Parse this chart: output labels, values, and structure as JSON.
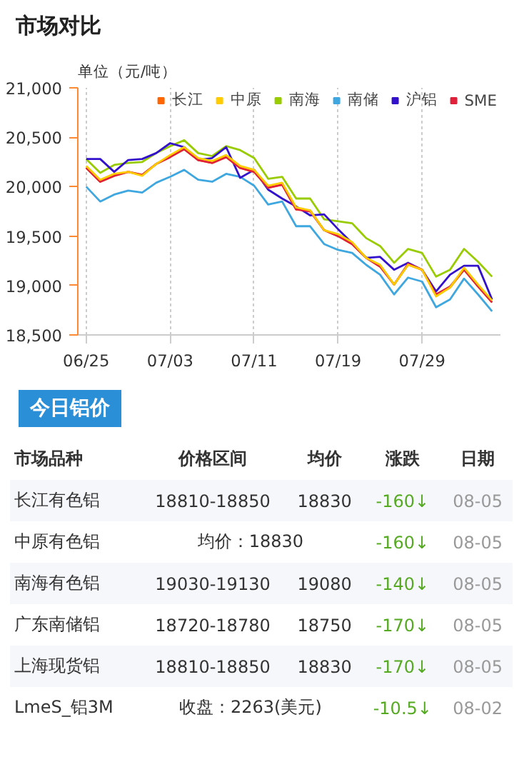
{
  "chart_data": {
    "type": "line",
    "title": "市场对比",
    "ylabel": "单位（元/吨）",
    "categories": [
      "06/25",
      null,
      null,
      null,
      null,
      null,
      "07/03",
      null,
      null,
      null,
      null,
      null,
      "07/11",
      null,
      null,
      null,
      null,
      null,
      "07/19",
      null,
      null,
      null,
      null,
      null,
      "07/29",
      null,
      null,
      null,
      null,
      null
    ],
    "ylim": [
      18500,
      21000
    ],
    "yticks": [
      {
        "value": 18500,
        "label": "18,500"
      },
      {
        "value": 19000,
        "label": "19,000"
      },
      {
        "value": 19500,
        "label": "19,500"
      },
      {
        "value": 20000,
        "label": "20,000"
      },
      {
        "value": 20500,
        "label": "20,500"
      },
      {
        "value": 21000,
        "label": "21,000"
      }
    ],
    "grid": "x",
    "legend": "top",
    "series": [
      {
        "name": "长江",
        "color": "#ff6600",
        "values": [
          20190,
          20050,
          20110,
          20150,
          20120,
          20230,
          20300,
          20380,
          20270,
          20240,
          20300,
          20190,
          20150,
          19990,
          20020,
          19770,
          19760,
          19560,
          19500,
          19420,
          19280,
          19200,
          19010,
          19210,
          19160,
          18900,
          18980,
          19160,
          18990,
          18830
        ]
      },
      {
        "name": "中原",
        "color": "#ffcc00",
        "values": [
          20210,
          20070,
          20130,
          20150,
          20110,
          20230,
          20320,
          20400,
          20290,
          20260,
          20320,
          20210,
          20170,
          20010,
          20040,
          19790,
          19760,
          19560,
          19520,
          19440,
          19280,
          19210,
          19010,
          19210,
          19160,
          18890,
          18980,
          19180,
          19010,
          18850
        ]
      },
      {
        "name": "南海",
        "color": "#99cc00",
        "values": [
          20280,
          20140,
          20220,
          20240,
          20250,
          20340,
          20410,
          20470,
          20340,
          20310,
          20410,
          20370,
          20290,
          20080,
          20100,
          19880,
          19880,
          19670,
          19650,
          19630,
          19480,
          19400,
          19230,
          19370,
          19330,
          19090,
          19160,
          19370,
          19240,
          19090
        ]
      },
      {
        "name": "南储",
        "color": "#3fa7e0",
        "values": [
          20000,
          19850,
          19920,
          19960,
          19940,
          20040,
          20100,
          20170,
          20070,
          20050,
          20130,
          20100,
          20010,
          19820,
          19850,
          19600,
          19600,
          19420,
          19360,
          19330,
          19210,
          19110,
          18910,
          19080,
          19040,
          18780,
          18860,
          19070,
          18910,
          18740
        ]
      },
      {
        "name": "沪铝",
        "color": "#3311cc",
        "values": [
          20280,
          20280,
          20150,
          20270,
          20280,
          20340,
          20440,
          20400,
          20270,
          20290,
          20400,
          20090,
          20170,
          19970,
          19880,
          19800,
          19710,
          19720,
          19570,
          19430,
          19280,
          19290,
          19160,
          19230,
          19160,
          18940,
          19110,
          19200,
          19200,
          18860
        ]
      },
      {
        "name": "SME",
        "color": "#e0203a",
        "values": [
          20190,
          20050,
          20110,
          20150,
          20120,
          20230,
          20300,
          20380,
          20270,
          20240,
          20300,
          20190,
          20150,
          19990,
          20020,
          19770,
          19750,
          19560,
          19500,
          19420,
          19280,
          19190,
          19010,
          19220,
          19160,
          18910,
          18990,
          19160,
          18990,
          18830
        ]
      }
    ],
    "annotations": [
      "今日铝价",
      "市场品种\t价格区间\t均价\t涨跌\t日期",
      "长江有色铝\t18810-18850\t18830\t-160↓\t08-05",
      "中原有色铝\t均价：18830\t-160↓\t08-05",
      "南海有色铝\t19030-19130\t19080\t-140↓\t08-05",
      "广东南储铝\t18720-18780\t18750\t-170↓\t08-05",
      "上海现货铝\t18810-18850\t18830\t-170↓\t08-05",
      "LmeS_铝3M\t收盘：2263(美元)\t-10.5↓\t08-02"
    ]
  }
}
